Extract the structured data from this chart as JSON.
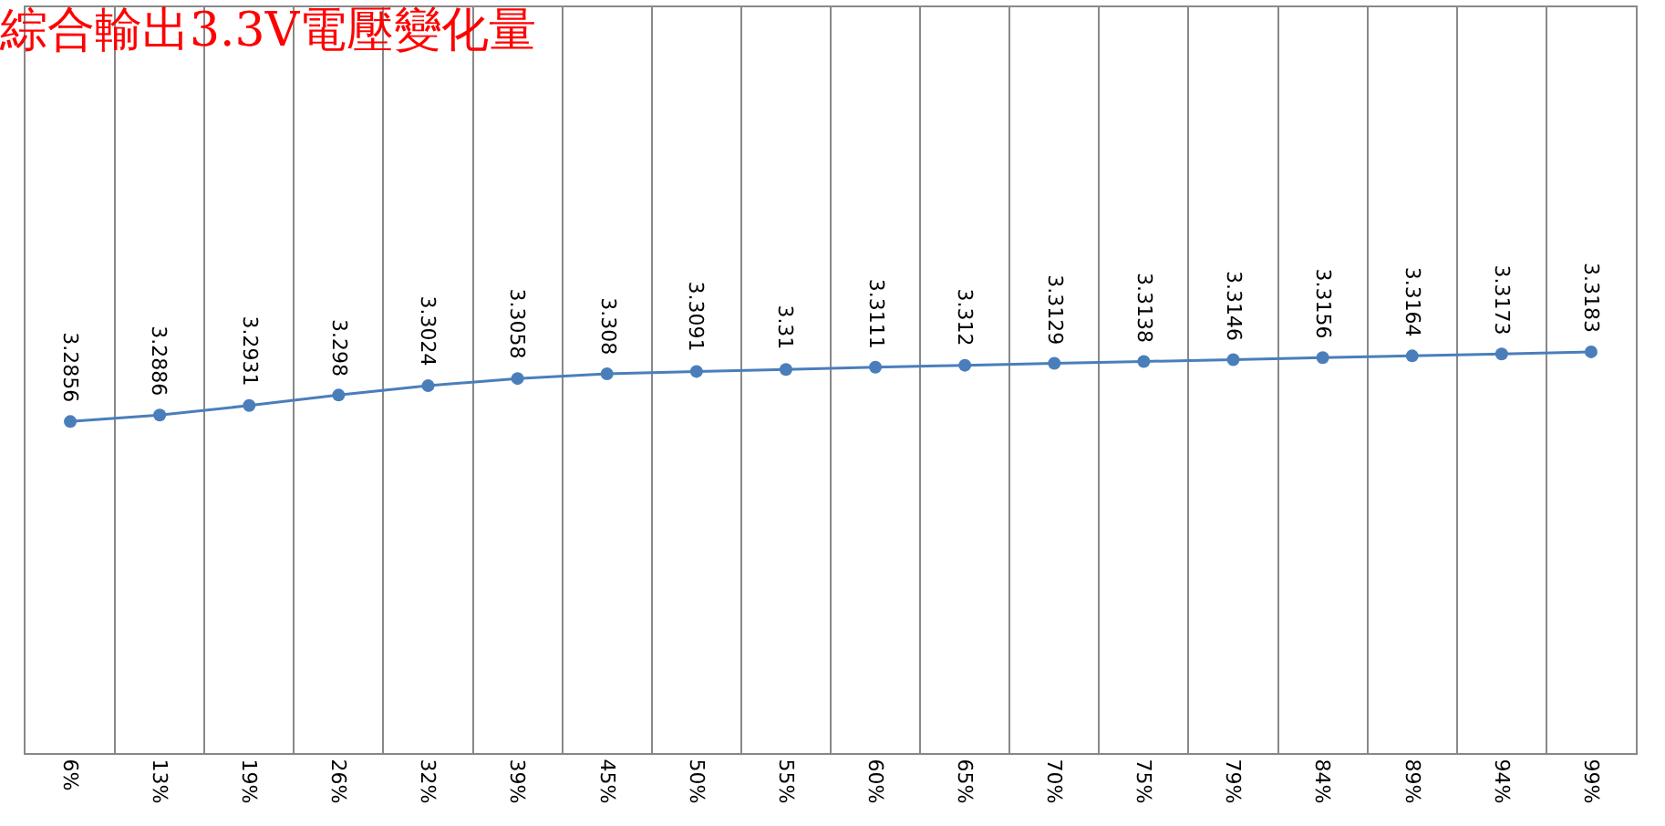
{
  "chart_data": {
    "type": "line",
    "title": "綜合輸出3.3V電壓變化量",
    "categories": [
      "6%",
      "13%",
      "19%",
      "26%",
      "32%",
      "39%",
      "45%",
      "50%",
      "55%",
      "60%",
      "65%",
      "70%",
      "75%",
      "79%",
      "84%",
      "89%",
      "94%",
      "99%"
    ],
    "series": [
      {
        "color": "#4a7ebb",
        "values": [
          3.2856,
          3.2886,
          3.2931,
          3.298,
          3.3024,
          3.3058,
          3.308,
          3.3091,
          3.31,
          3.3111,
          3.312,
          3.3129,
          3.3138,
          3.3146,
          3.3156,
          3.3164,
          3.3173,
          3.3183
        ]
      }
    ],
    "ylim": [
      3.13,
      3.48
    ],
    "tick_labels": "x",
    "grid": "x",
    "marker": "circle",
    "line_style": "solid",
    "data_labels": true,
    "legend": false
  }
}
